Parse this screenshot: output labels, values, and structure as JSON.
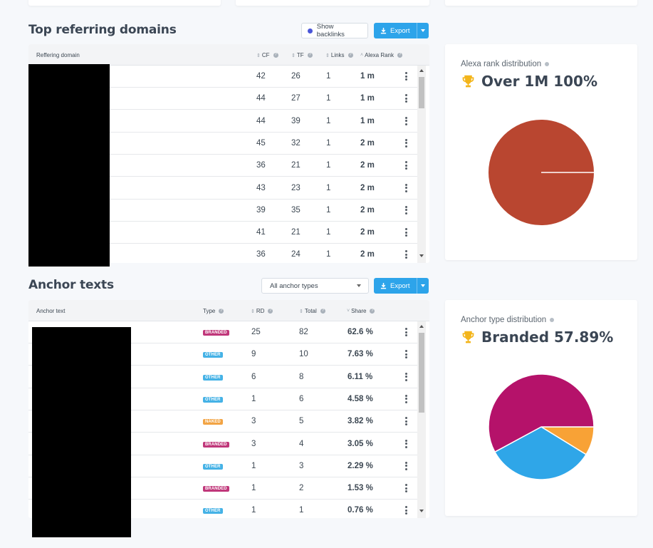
{
  "referring": {
    "title": "Top referring domains",
    "show_backlinks_label": "Show backlinks",
    "export_label": "Export",
    "columns": {
      "domain": "Reffering domain",
      "cf": "CF",
      "tf": "TF",
      "links": "Links",
      "alexa": "Alexa Rank"
    },
    "rows": [
      {
        "cf": "42",
        "tf": "26",
        "links": "1",
        "alexa": "1 m"
      },
      {
        "cf": "44",
        "tf": "27",
        "links": "1",
        "alexa": "1 m"
      },
      {
        "cf": "44",
        "tf": "39",
        "links": "1",
        "alexa": "1 m"
      },
      {
        "cf": "45",
        "tf": "32",
        "links": "1",
        "alexa": "2 m"
      },
      {
        "cf": "36",
        "tf": "21",
        "links": "1",
        "alexa": "2 m"
      },
      {
        "cf": "43",
        "tf": "23",
        "links": "1",
        "alexa": "2 m"
      },
      {
        "cf": "39",
        "tf": "35",
        "links": "1",
        "alexa": "2 m"
      },
      {
        "cf": "41",
        "tf": "21",
        "links": "1",
        "alexa": "2 m"
      },
      {
        "cf": "36",
        "tf": "24",
        "links": "1",
        "alexa": "2 m"
      }
    ]
  },
  "alexa_panel": {
    "label": "Alexa rank distribution",
    "value": "Over 1M 100%",
    "slices": [
      {
        "name": "Over 1M",
        "percent": 100,
        "color": "#b94630"
      }
    ]
  },
  "anchors": {
    "title": "Anchor texts",
    "filter_value": "All anchor types",
    "export_label": "Export",
    "columns": {
      "anchor": "Anchor text",
      "type": "Type",
      "rd": "RD",
      "total": "Total",
      "share": "Share"
    },
    "rows": [
      {
        "type": "BRANDED",
        "rd": "25",
        "total": "82",
        "share": "62.6 %"
      },
      {
        "type": "OTHER",
        "rd": "9",
        "total": "10",
        "share": "7.63 %"
      },
      {
        "type": "OTHER",
        "rd": "6",
        "total": "8",
        "share": "6.11 %"
      },
      {
        "type": "OTHER",
        "rd": "1",
        "total": "6",
        "share": "4.58 %"
      },
      {
        "type": "NAKED",
        "rd": "3",
        "total": "5",
        "share": "3.82 %"
      },
      {
        "type": "BRANDED",
        "rd": "3",
        "total": "4",
        "share": "3.05 %"
      },
      {
        "type": "OTHER",
        "rd": "1",
        "total": "3",
        "share": "2.29 %"
      },
      {
        "type": "BRANDED",
        "rd": "1",
        "total": "2",
        "share": "1.53 %"
      },
      {
        "type": "OTHER",
        "rd": "1",
        "total": "1",
        "share": "0.76 %"
      }
    ],
    "badge_colors": {
      "BRANDED": "#c0377a",
      "OTHER": "#45b2e6",
      "NAKED": "#f2a444"
    }
  },
  "anchor_panel": {
    "label": "Anchor type distribution",
    "value": "Branded 57.89%",
    "slices": [
      {
        "name": "Branded",
        "percent": 57.89,
        "color": "#b5126a"
      },
      {
        "name": "Other",
        "percent": 33.33,
        "color": "#2fa6e8"
      },
      {
        "name": "Naked",
        "percent": 8.78,
        "color": "#f8a236"
      }
    ]
  },
  "colors": {
    "accent": "#2da4ea",
    "trophy": "#f3b51b"
  }
}
